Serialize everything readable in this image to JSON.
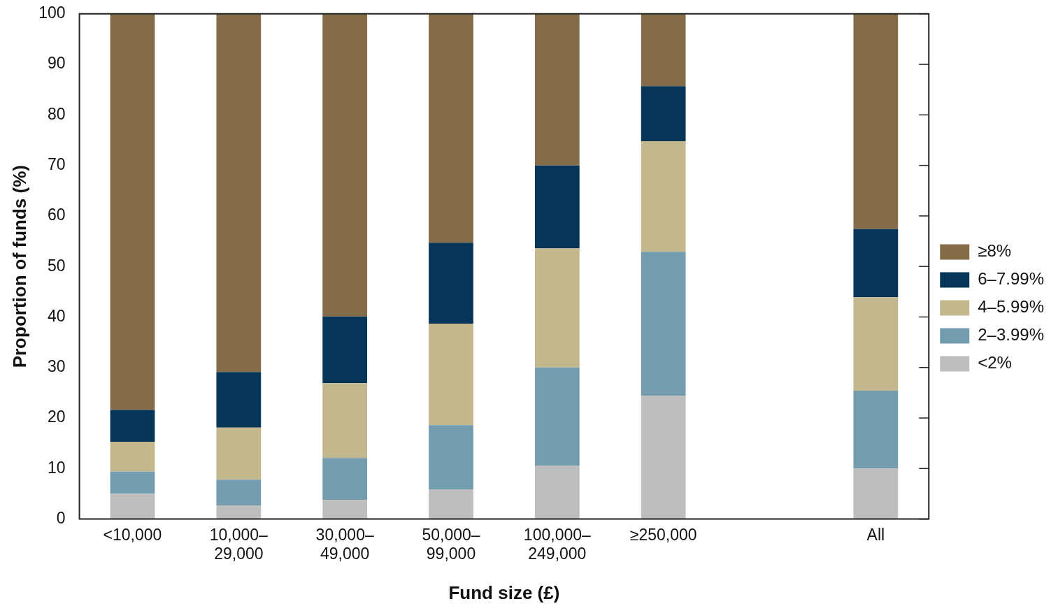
{
  "chart_data": {
    "type": "bar",
    "stacked": true,
    "xlabel": "Fund size (£)",
    "ylabel": "Proportion of funds (%)",
    "categories": [
      "<10,000",
      "10,000–29,000",
      "30,000–49,000",
      "50,000–99,000",
      "100,000–249,000",
      "≥250,000",
      null,
      "All"
    ],
    "series": [
      {
        "name": "<2%",
        "color": "#bebebe",
        "values": [
          5.0,
          2.7,
          3.8,
          5.9,
          10.6,
          24.4,
          null,
          10.0
        ]
      },
      {
        "name": "2–3.99%",
        "color": "#749caf",
        "values": [
          4.4,
          5.1,
          8.3,
          12.7,
          19.4,
          28.5,
          null,
          15.4
        ]
      },
      {
        "name": "4–5.99%",
        "color": "#c3b78e",
        "values": [
          5.9,
          10.3,
          14.8,
          20.1,
          23.6,
          21.9,
          null,
          18.5
        ]
      },
      {
        "name": "6–7.99%",
        "color": "#063558",
        "values": [
          6.3,
          11.0,
          13.2,
          16.0,
          16.4,
          10.9,
          null,
          13.5
        ]
      },
      {
        "name": "≥8%",
        "color": "#846c49",
        "values": [
          78.4,
          70.9,
          59.9,
          45.3,
          30.0,
          14.3,
          null,
          42.6
        ]
      }
    ],
    "ylim": [
      0,
      100
    ],
    "yticks": [
      0,
      10,
      20,
      30,
      40,
      50,
      60,
      70,
      80,
      90,
      100
    ],
    "grid": false,
    "legend": "right"
  }
}
